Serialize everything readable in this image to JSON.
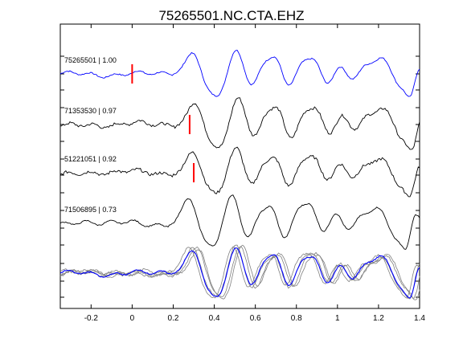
{
  "chart_data": {
    "type": "line",
    "title": "75265501.NC.CTA.EHZ",
    "xlabel": "",
    "ylabel": "",
    "xlim": [
      -0.35,
      1.4
    ],
    "x_ticks": [
      -0.2,
      0,
      0.2,
      0.4,
      0.6,
      0.8,
      1,
      1.2,
      1.4
    ],
    "x_tick_labels": [
      "-0.2",
      "0",
      "0.2",
      "0.4",
      "0.6",
      "0.8",
      "1",
      "1.2",
      "1.4"
    ],
    "grid": false,
    "traces": [
      {
        "label": "75265501 | 1.00",
        "color": "#0000ff",
        "pick_time": 0.0
      },
      {
        "label": "71353530 | 0.97",
        "color": "#000000",
        "pick_time": 0.28
      },
      {
        "label": "51221051 | 0.92",
        "color": "#000000",
        "pick_time": 0.3
      },
      {
        "label": "71506895 | 0.73",
        "color": "#000000",
        "pick_time": null
      }
    ],
    "overlay": {
      "primary_color": "#0000ff",
      "other_color": "#808080"
    },
    "pick_color": "#ff0000"
  }
}
